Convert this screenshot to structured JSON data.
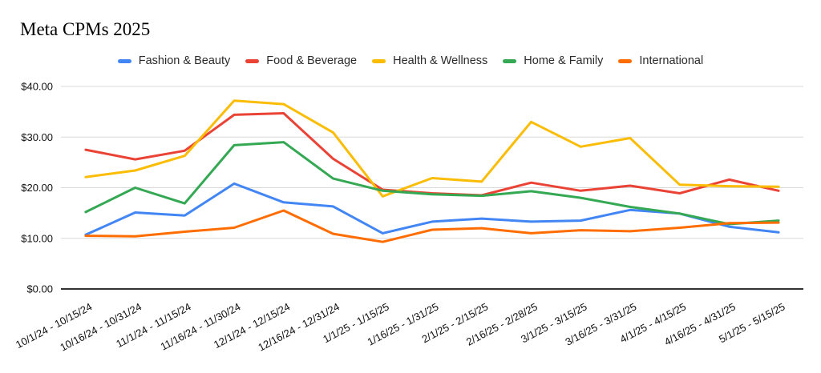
{
  "title": "Meta CPMs 2025",
  "chart_data": {
    "type": "line",
    "title": "Meta CPMs 2025",
    "legend_position": "top",
    "grid": true,
    "ylim": [
      0,
      40
    ],
    "y_ticks": [
      {
        "value": 0,
        "label": "$0.00"
      },
      {
        "value": 10,
        "label": "$10.00"
      },
      {
        "value": 20,
        "label": "$20.00"
      },
      {
        "value": 30,
        "label": "$30.00"
      },
      {
        "value": 40,
        "label": "$40.00"
      }
    ],
    "categories": [
      "10/1/24 - 10/15/24",
      "10/16/24 - 10/31/24",
      "11/1/24 - 11/15/24",
      "11/16/24 - 11/30/24",
      "12/1/24 - 12/15/24",
      "12/16/24 - 12/31/24",
      "1/1/25 - 1/15/25",
      "1/16/25 - 1/31/25",
      "2/1/25 - 2/15/25",
      "2/16/25 - 2/28/25",
      "3/1/25 - 3/15/25",
      "3/16/25 - 3/31/25",
      "4/1/25 - 4/15/25",
      "4/16/25 - 4/31/25",
      "5/1/25 - 5/15/25"
    ],
    "series": [
      {
        "name": "Fashion & Beauty",
        "color": "#4285F4",
        "values": [
          10.7,
          15.1,
          14.5,
          20.8,
          17.1,
          16.3,
          11.0,
          13.3,
          13.9,
          13.3,
          13.5,
          15.6,
          14.9,
          12.3,
          11.2
        ]
      },
      {
        "name": "Food & Beverage",
        "color": "#EA4335",
        "values": [
          27.5,
          25.6,
          27.3,
          34.4,
          34.7,
          25.7,
          19.6,
          18.9,
          18.5,
          21.0,
          19.4,
          20.4,
          18.9,
          21.6,
          19.4
        ]
      },
      {
        "name": "Health & Wellness",
        "color": "#FBBC04",
        "values": [
          22.1,
          23.4,
          26.3,
          37.2,
          36.5,
          30.9,
          18.3,
          21.9,
          21.2,
          33.0,
          28.1,
          29.8,
          20.6,
          20.3,
          20.2
        ]
      },
      {
        "name": "Home & Family",
        "color": "#34A853",
        "values": [
          15.2,
          20.0,
          16.9,
          28.4,
          29.0,
          21.8,
          19.4,
          18.7,
          18.4,
          19.3,
          18.0,
          16.2,
          14.9,
          12.8,
          13.5
        ]
      },
      {
        "name": "International",
        "color": "#FF6D01",
        "values": [
          10.5,
          10.4,
          11.3,
          12.1,
          15.5,
          10.9,
          9.3,
          11.7,
          12.0,
          11.0,
          11.6,
          11.4,
          12.1,
          13.0,
          13.1
        ]
      }
    ]
  }
}
